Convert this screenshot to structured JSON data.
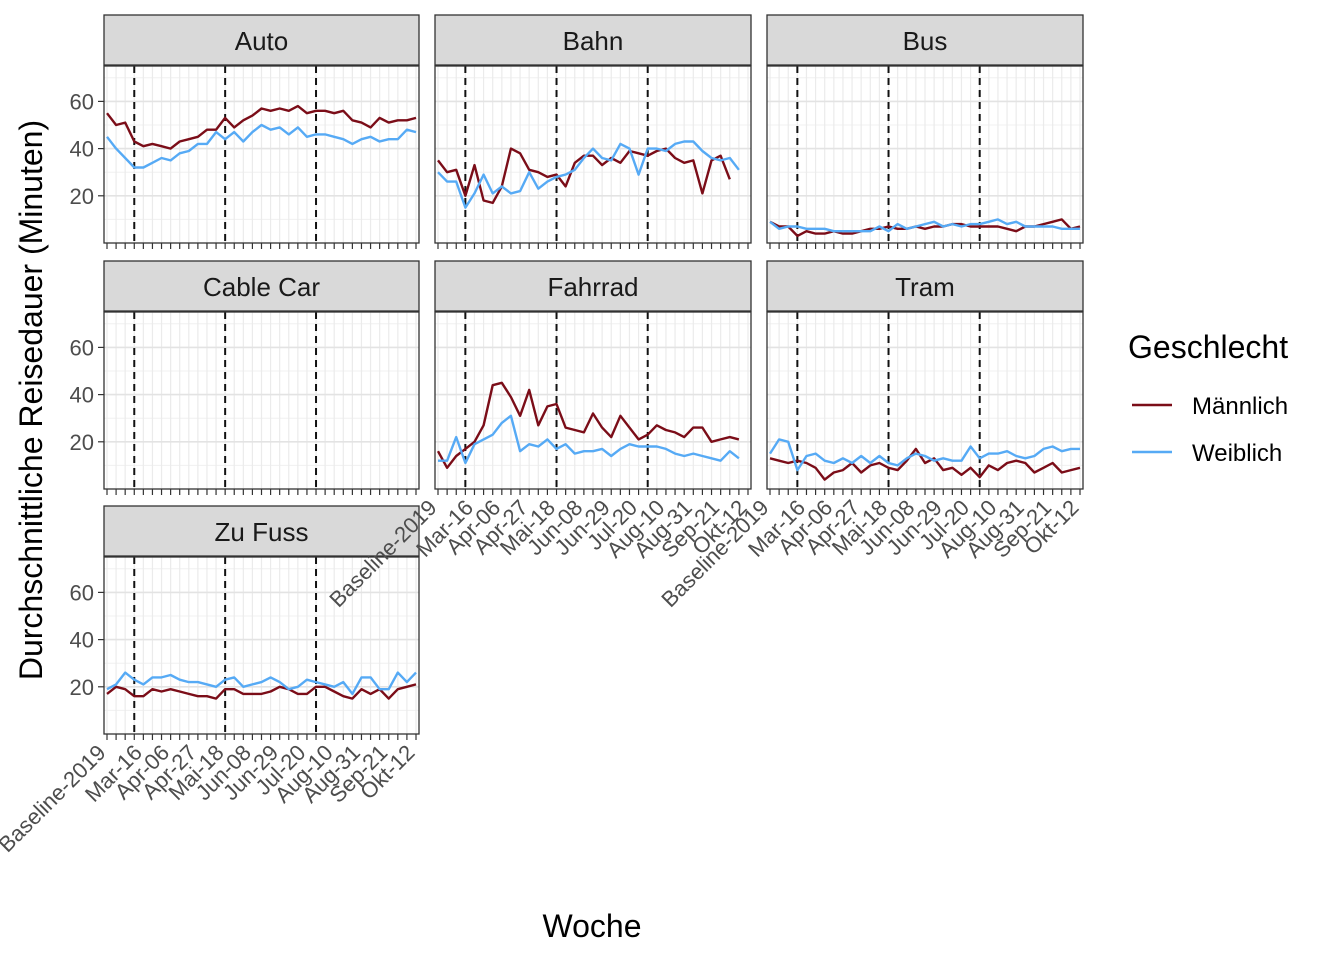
{
  "chart_data": {
    "type": "line",
    "xlabel": "Woche",
    "ylabel": "Durchschnittliche Reisedauer (Minuten)",
    "ylim": [
      0,
      75
    ],
    "yticks": [
      20,
      40,
      60
    ],
    "x_tick_labels": [
      "Baseline-2019",
      "Mar-16",
      "Apr-06",
      "Apr-27",
      "Mai-18",
      "Jun-08",
      "Jun-29",
      "Jul-20",
      "Aug-10",
      "Aug-31",
      "Sep-21",
      "Okt-12"
    ],
    "x_tick_positions": [
      0,
      4,
      7,
      10,
      13,
      16,
      19,
      22,
      25,
      28,
      31,
      34
    ],
    "n_weeks": 35,
    "vlines_dashed": [
      3,
      13,
      23
    ],
    "grid": true,
    "legend": {
      "title": "Geschlecht",
      "placement": "right",
      "entries": [
        {
          "name": "Männlich",
          "color": "#7b0d18"
        },
        {
          "name": "Weiblich",
          "color": "#56aaf5"
        }
      ]
    },
    "facets": [
      {
        "name": "Auto",
        "series": [
          {
            "name": "Männlich",
            "values": [
              55,
              50,
              51,
              43,
              41,
              42,
              41,
              40,
              43,
              44,
              45,
              48,
              48,
              53,
              49,
              52,
              54,
              57,
              56,
              57,
              56,
              58,
              55,
              56,
              56,
              55,
              56,
              52,
              51,
              49,
              53,
              51,
              52,
              52,
              53
            ]
          },
          {
            "name": "Weiblich",
            "values": [
              45,
              40,
              36,
              32,
              32,
              34,
              36,
              35,
              38,
              39,
              42,
              42,
              47,
              44,
              47,
              43,
              47,
              50,
              48,
              49,
              46,
              49,
              45,
              46,
              46,
              45,
              44,
              42,
              44,
              45,
              43,
              44,
              44,
              48,
              47
            ]
          }
        ]
      },
      {
        "name": "Bahn",
        "series": [
          {
            "name": "Männlich",
            "values": [
              35,
              30,
              31,
              20,
              33,
              18,
              17,
              24,
              40,
              38,
              31,
              30,
              28,
              29,
              24,
              34,
              37,
              37,
              33,
              36,
              34,
              39,
              38,
              37,
              39,
              40,
              36,
              34,
              35,
              21,
              35,
              37,
              27,
              null,
              null
            ]
          },
          {
            "name": "Weiblich",
            "values": [
              30,
              26,
              26,
              15,
              21,
              29,
              21,
              24,
              21,
              22,
              30,
              23,
              26,
              28,
              29,
              31,
              36,
              40,
              36,
              35,
              42,
              40,
              29,
              40,
              40,
              39,
              42,
              43,
              43,
              39,
              36,
              35,
              36,
              31,
              null
            ]
          }
        ]
      },
      {
        "name": "Bus",
        "series": [
          {
            "name": "Männlich",
            "values": [
              9,
              7,
              7,
              3,
              5,
              4,
              4,
              5,
              4,
              4,
              5,
              6,
              6,
              7,
              6,
              6,
              7,
              6,
              7,
              7,
              8,
              8,
              7,
              7,
              7,
              7,
              6,
              5,
              7,
              7,
              8,
              9,
              10,
              6,
              7
            ]
          },
          {
            "name": "Weiblich",
            "values": [
              9,
              6,
              7,
              7,
              6,
              6,
              6,
              5,
              5,
              5,
              5,
              5,
              7,
              5,
              8,
              6,
              7,
              8,
              9,
              7,
              8,
              7,
              8,
              8,
              9,
              10,
              8,
              9,
              7,
              7,
              7,
              7,
              6,
              6,
              6
            ]
          }
        ]
      },
      {
        "name": "Cable Car",
        "series": []
      },
      {
        "name": "Fahrrad",
        "series": [
          {
            "name": "Männlich",
            "values": [
              16,
              9,
              14,
              17,
              20,
              27,
              44,
              45,
              39,
              31,
              42,
              27,
              35,
              36,
              26,
              25,
              24,
              32,
              26,
              22,
              31,
              26,
              21,
              23,
              27,
              25,
              24,
              22,
              26,
              26,
              20,
              21,
              22,
              21,
              null
            ]
          },
          {
            "name": "Weiblich",
            "values": [
              12,
              12,
              22,
              11,
              19,
              21,
              23,
              28,
              31,
              16,
              19,
              18,
              21,
              17,
              19,
              15,
              16,
              16,
              17,
              14,
              17,
              19,
              18,
              18,
              18,
              17,
              15,
              14,
              15,
              14,
              13,
              12,
              16,
              13,
              null
            ]
          }
        ]
      },
      {
        "name": "Tram",
        "series": [
          {
            "name": "Männlich",
            "values": [
              13,
              12,
              11,
              12,
              11,
              9,
              4,
              7,
              8,
              11,
              7,
              10,
              11,
              9,
              8,
              12,
              17,
              11,
              13,
              8,
              9,
              6,
              9,
              5,
              10,
              8,
              11,
              12,
              11,
              7,
              9,
              11,
              7,
              8,
              9
            ]
          },
          {
            "name": "Weiblich",
            "values": [
              15,
              21,
              20,
              8,
              14,
              15,
              12,
              11,
              13,
              11,
              14,
              11,
              14,
              11,
              10,
              13,
              15,
              14,
              12,
              13,
              12,
              12,
              18,
              13,
              15,
              15,
              16,
              14,
              13,
              14,
              17,
              18,
              16,
              17,
              17
            ]
          }
        ]
      },
      {
        "name": "Zu Fuss",
        "series": [
          {
            "name": "Männlich",
            "values": [
              17,
              20,
              19,
              16,
              16,
              19,
              18,
              19,
              18,
              17,
              16,
              16,
              15,
              19,
              19,
              17,
              17,
              17,
              18,
              20,
              19,
              17,
              17,
              20,
              20,
              18,
              16,
              15,
              19,
              17,
              19,
              15,
              19,
              20,
              21
            ]
          },
          {
            "name": "Weiblich",
            "values": [
              19,
              21,
              26,
              23,
              21,
              24,
              24,
              25,
              23,
              22,
              22,
              21,
              20,
              23,
              24,
              20,
              21,
              22,
              24,
              22,
              19,
              20,
              23,
              22,
              21,
              20,
              22,
              17,
              24,
              24,
              19,
              19,
              26,
              22,
              26
            ]
          }
        ]
      }
    ]
  }
}
